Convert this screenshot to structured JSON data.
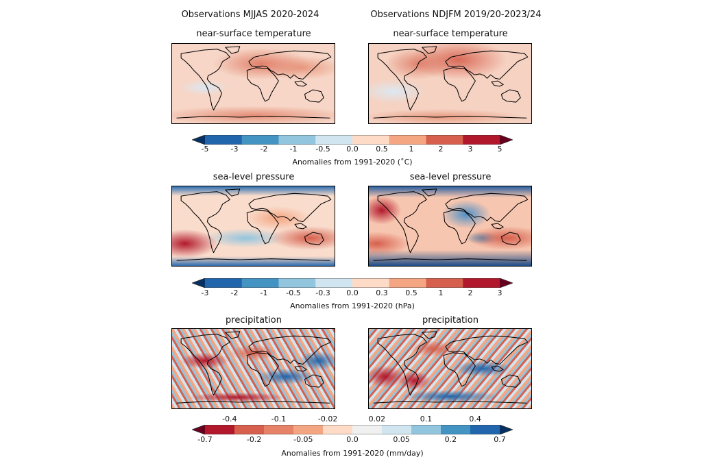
{
  "columns": [
    {
      "title": "Observations MJJAS 2020-2024"
    },
    {
      "title": "Observations NDJFM 2019/20-2023/24"
    }
  ],
  "rows": [
    {
      "variable": "near-surface temperature",
      "colorbar": {
        "ticks": [
          "-5",
          "-3",
          "-2",
          "-1",
          "-0.5",
          "0.0",
          "0.5",
          "1",
          "2",
          "3",
          "5"
        ],
        "label": "Anomalies from 1991-2020 (˚C)",
        "colors": [
          "#053061",
          "#2166ac",
          "#4393c3",
          "#92c5de",
          "#d1e5f0",
          "#fddbc7",
          "#f4a582",
          "#d6604d",
          "#b2182b",
          "#67001f"
        ],
        "extend": "both"
      }
    },
    {
      "variable": "sea-level pressure",
      "colorbar": {
        "ticks": [
          "-3",
          "-2",
          "-1",
          "-0.5",
          "-0.3",
          "0.0",
          "0.3",
          "0.5",
          "1",
          "2",
          "3"
        ],
        "label": "Anomalies from 1991-2020 (hPa)",
        "colors": [
          "#053061",
          "#2166ac",
          "#4393c3",
          "#92c5de",
          "#d1e5f0",
          "#fddbc7",
          "#f4a582",
          "#d6604d",
          "#b2182b",
          "#67001f"
        ],
        "extend": "both"
      }
    },
    {
      "variable": "precipitation",
      "colorbar": {
        "ticks": [
          "-0.7",
          "-0.4",
          "-0.2",
          "-0.1",
          "-0.05",
          "-0.02",
          "0.0",
          "0.02",
          "0.05",
          "0.1",
          "0.2",
          "0.4",
          "0.7"
        ],
        "label": "Anomalies from 1991-2020 (mm/day)",
        "colors": [
          "#67001f",
          "#b2182b",
          "#d6604d",
          "#e58267",
          "#f4a582",
          "#fddbc7",
          "#f0f0f0",
          "#d1e5f0",
          "#92c5de",
          "#4393c3",
          "#2166ac",
          "#053061"
        ],
        "extend": "both"
      }
    }
  ]
}
